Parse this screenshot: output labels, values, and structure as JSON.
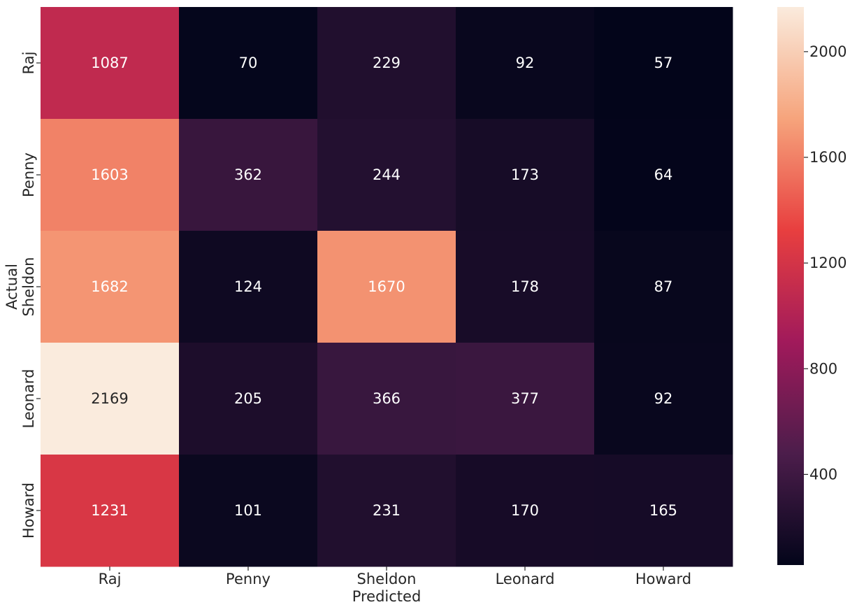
{
  "chart_data": {
    "type": "heatmap",
    "title": "",
    "xlabel": "Predicted",
    "ylabel": "Actual",
    "x_categories": [
      "Raj",
      "Penny",
      "Sheldon",
      "Leonard",
      "Howard"
    ],
    "y_categories": [
      "Raj",
      "Penny",
      "Sheldon",
      "Leonard",
      "Howard"
    ],
    "values": [
      [
        1087,
        70,
        229,
        92,
        57
      ],
      [
        1603,
        362,
        244,
        173,
        64
      ],
      [
        1682,
        124,
        1670,
        178,
        87
      ],
      [
        2169,
        205,
        366,
        377,
        92
      ],
      [
        1231,
        101,
        231,
        170,
        165
      ]
    ],
    "colorbar": {
      "min": 57,
      "max": 2169,
      "ticks": [
        400,
        800,
        1200,
        1600,
        2000
      ],
      "colormap": "rocket",
      "stops": [
        "#03051a",
        "#4c1d4b",
        "#a11a5b",
        "#e83f3f",
        "#f6a47c",
        "#faebdd"
      ]
    },
    "annotation_colors": {
      "light": "#ffffff",
      "dark": "#262626"
    }
  }
}
